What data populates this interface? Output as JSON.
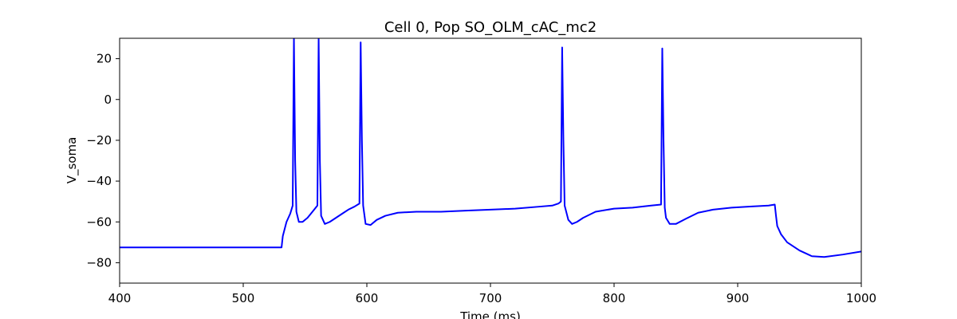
{
  "chart_data": {
    "type": "line",
    "title": "Cell 0, Pop SO_OLM_cAC_mc2",
    "xlabel": "Time (ms)",
    "ylabel": "V_soma",
    "xlim": [
      400,
      1000
    ],
    "ylim": [
      -90,
      30
    ],
    "xticks": [
      "400",
      "500",
      "600",
      "700",
      "800",
      "900",
      "1000"
    ],
    "yticks": [
      "−80",
      "−60",
      "−40",
      "−20",
      "0",
      "20"
    ],
    "grid": false,
    "series": [
      {
        "color": "#0000ff",
        "x": [
          400,
          531,
          532,
          535,
          538,
          540,
          541,
          542,
          543,
          545,
          548,
          552,
          556,
          560,
          561,
          562,
          563,
          566,
          570,
          575,
          580,
          585,
          590,
          594,
          595,
          596,
          597,
          599,
          603,
          608,
          615,
          625,
          640,
          660,
          680,
          700,
          720,
          740,
          750,
          755,
          757,
          758,
          759,
          760,
          763,
          766,
          770,
          775,
          785,
          800,
          815,
          830,
          838,
          839,
          840,
          841,
          842,
          845,
          850,
          858,
          868,
          880,
          895,
          910,
          925,
          930,
          931,
          932,
          935,
          940,
          950,
          960,
          970,
          985,
          1000
        ],
        "y": [
          -72.5,
          -72.5,
          -67,
          -60,
          -56,
          -52,
          30,
          -30,
          -55,
          -60,
          -60,
          -58,
          -55,
          -52,
          30,
          -30,
          -57,
          -61,
          -60,
          -58,
          -56,
          -54,
          -52.5,
          -51,
          28,
          -20,
          -52,
          -61,
          -61.5,
          -59,
          -57,
          -55.5,
          -55,
          -55,
          -54.5,
          -54,
          -53.5,
          -52.5,
          -52,
          -51,
          -50,
          25.5,
          -20,
          -52,
          -59,
          -61,
          -60,
          -58,
          -55,
          -53.5,
          -53,
          -52,
          -51.5,
          25,
          -20,
          -53,
          -58,
          -61,
          -61,
          -58.5,
          -55.5,
          -54,
          -53,
          -52.5,
          -52,
          -51.5,
          -57,
          -62,
          -66,
          -70,
          -74,
          -76.8,
          -77.2,
          -76,
          -74.5
        ]
      }
    ]
  }
}
